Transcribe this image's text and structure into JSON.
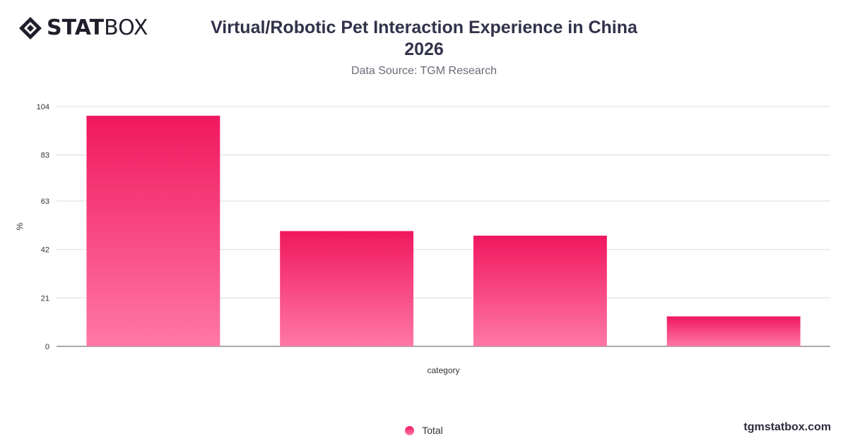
{
  "brand": {
    "logo_bold": "STAT",
    "logo_light": "BOX",
    "website": "tgmstatbox.com"
  },
  "header": {
    "title_line1": "Virtual/Robotic Pet Interaction Experience in China",
    "title_line2": "2026",
    "subtitle": "Data Source: TGM Research"
  },
  "colors": {
    "bar_top": "#f0185f",
    "bar_bottom": "#ff78a6",
    "grid": "#dcdcdc",
    "axis": "#555555"
  },
  "chart_data": {
    "type": "bar",
    "title": "Virtual/Robotic Pet Interaction Experience in China 2026",
    "subtitle": "Data Source: TGM Research",
    "xlabel": "category",
    "ylabel": "%",
    "categories": [
      "",
      "",
      "",
      ""
    ],
    "series": [
      {
        "name": "Total",
        "values": [
          100,
          50,
          48,
          13
        ]
      }
    ],
    "y_ticks": [
      0,
      21,
      42,
      63,
      83,
      104
    ],
    "ylim": [
      0,
      104
    ],
    "grid": true,
    "legend_position": "bottom-center"
  }
}
